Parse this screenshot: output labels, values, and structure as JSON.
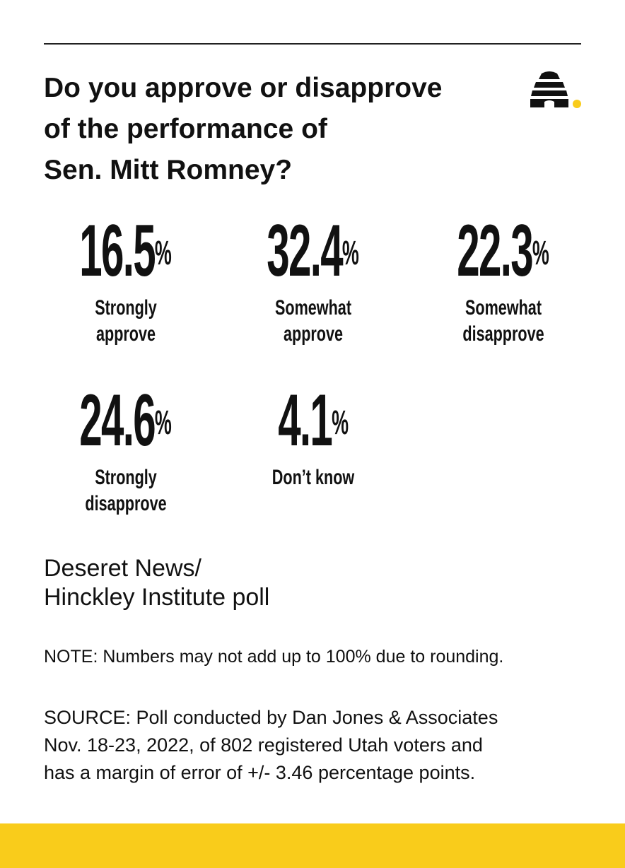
{
  "header": {
    "title_lines": [
      "Do you approve or disapprove",
      "of the performance of",
      "Sen. Mitt Romney?"
    ]
  },
  "results": [
    {
      "value": "16.5",
      "unit": "%",
      "label_lines": [
        "Strongly",
        "approve"
      ]
    },
    {
      "value": "32.4",
      "unit": "%",
      "label_lines": [
        "Somewhat",
        "approve"
      ]
    },
    {
      "value": "22.3",
      "unit": "%",
      "label_lines": [
        "Somewhat",
        "disapprove"
      ]
    },
    {
      "value": "24.6",
      "unit": "%",
      "label_lines": [
        "Strongly",
        "disapprove"
      ]
    },
    {
      "value": "4.1",
      "unit": "%",
      "label_lines": [
        "Don’t know"
      ]
    }
  ],
  "poll_name_lines": [
    "Deseret News/",
    "Hinckley Institute poll"
  ],
  "note": "NOTE: Numbers may not add up to 100% due to rounding.",
  "source_lines": [
    "SOURCE: Poll conducted by Dan Jones & Associates",
    "Nov. 18-23, 2022, of 802 registered Utah voters and",
    "has a margin of error of +/- 3.46 percentage points."
  ]
}
